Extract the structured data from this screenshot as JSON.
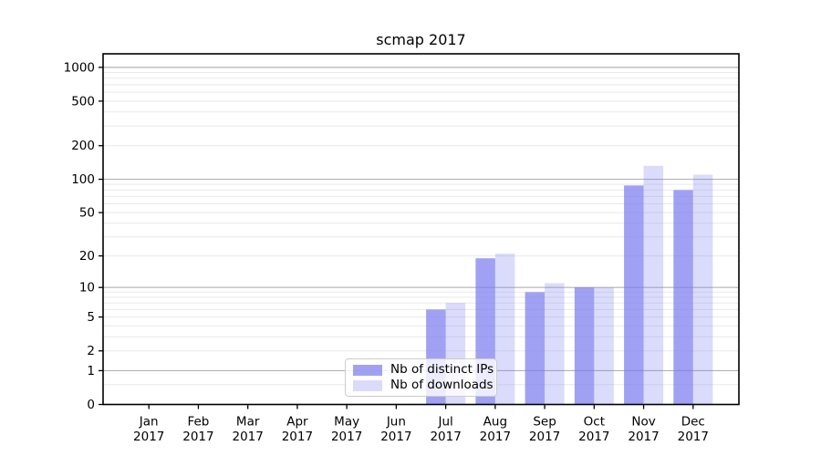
{
  "chart_data": {
    "type": "bar",
    "title": "scmap 2017",
    "categories": [
      "Jan",
      "Feb",
      "Mar",
      "Apr",
      "May",
      "Jun",
      "Jul",
      "Aug",
      "Sep",
      "Oct",
      "Nov",
      "Dec"
    ],
    "category_year": "2017",
    "series": [
      {
        "name": "Nb of distinct IPs",
        "color": "#7979f0",
        "opacity": 0.7,
        "values": [
          0,
          0,
          0,
          0,
          0,
          0,
          6,
          19,
          9,
          10,
          88,
          80
        ]
      },
      {
        "name": "Nb of downloads",
        "color": "#7979f0",
        "opacity": 0.27,
        "values": [
          0,
          0,
          0,
          0,
          0,
          0,
          7,
          21,
          11,
          10,
          132,
          110
        ]
      }
    ],
    "yscale": "log1p",
    "ylim": [
      0,
      1320
    ],
    "yticks": [
      0,
      1,
      2,
      5,
      10,
      20,
      50,
      100,
      200,
      500,
      1000
    ],
    "major_gridlines": [
      1,
      10,
      100,
      1000
    ],
    "minor_gridlines": [
      0.5,
      2,
      3,
      4,
      5,
      6,
      7,
      8,
      9,
      20,
      30,
      40,
      50,
      60,
      70,
      80,
      90,
      200,
      300,
      400,
      500,
      600,
      700,
      800,
      900
    ],
    "grid": true,
    "legend_position": "lower center"
  },
  "colors": {
    "bar_fill": "#7979f0",
    "major_grid": "#b3b3b3",
    "minor_grid": "#e9e9e9",
    "spine": "#000000",
    "legend_border": "#cccccc"
  }
}
